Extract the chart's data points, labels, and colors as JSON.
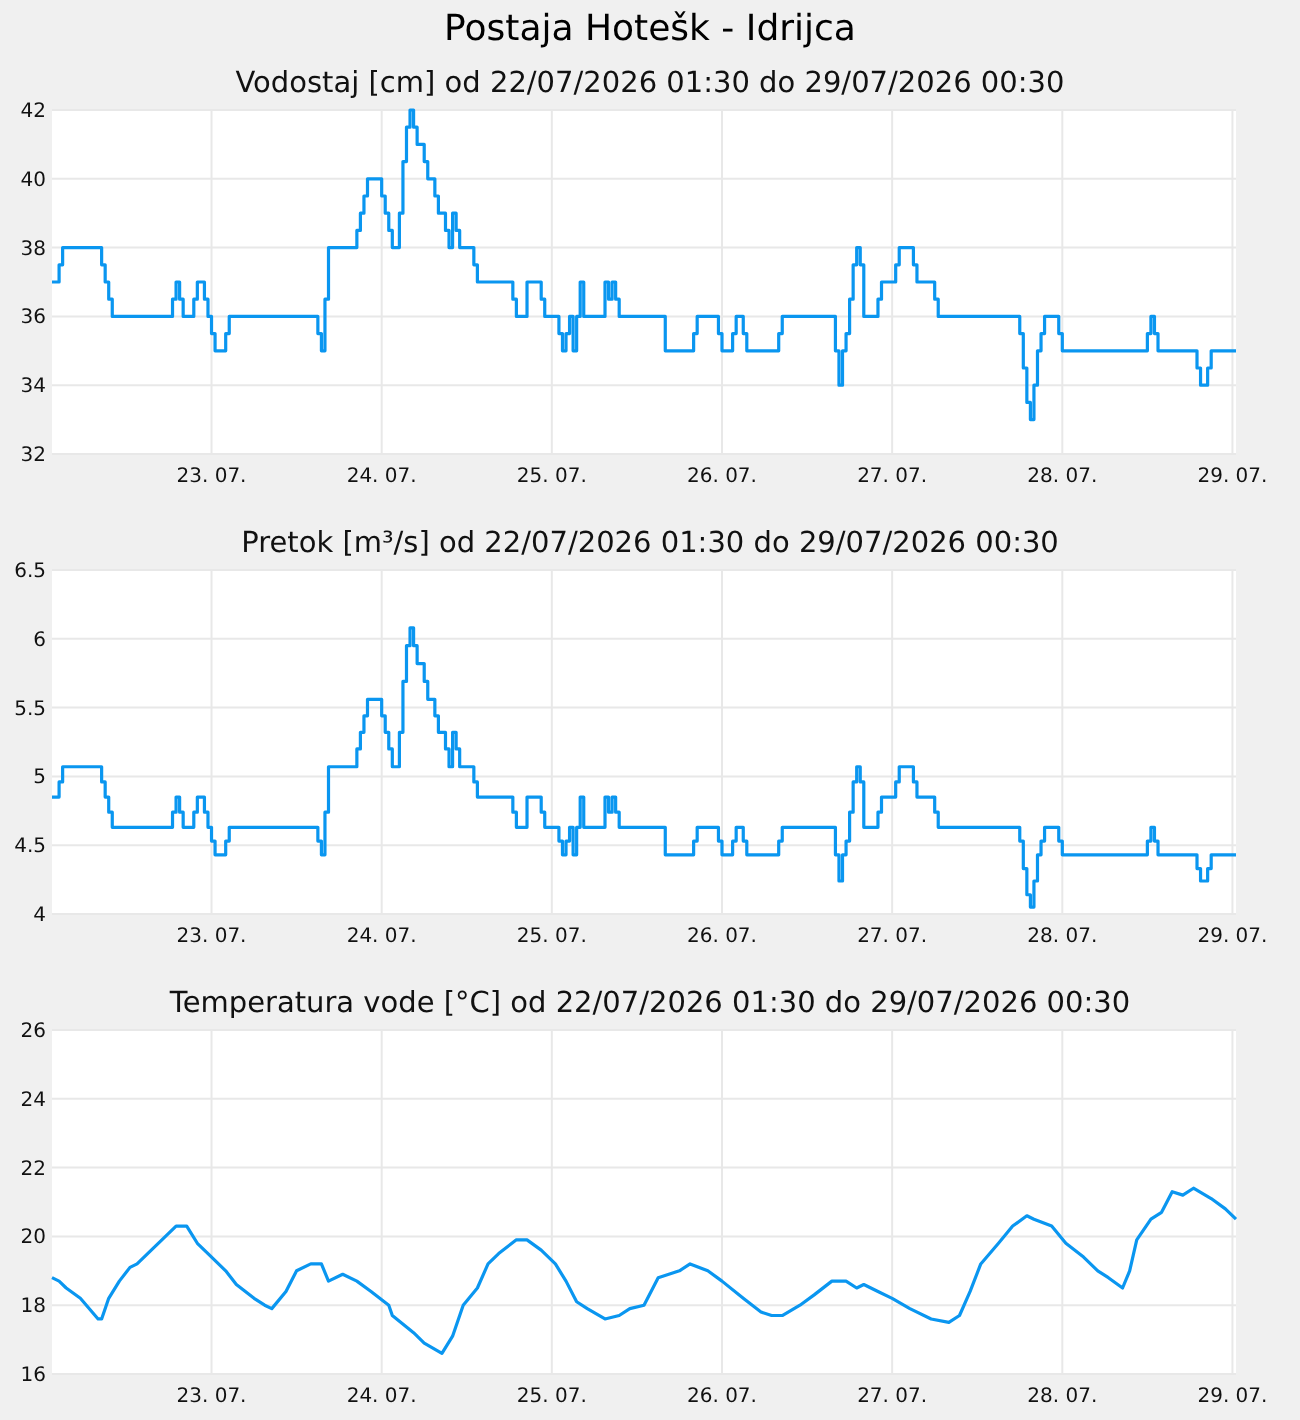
{
  "chart_data": [
    {
      "type": "step",
      "title": "Postaja Hotešk - Idrijca",
      "subtitle": "Vodostaj [cm] od 22/07/2026 01:30 do 29/07/2026 00:30",
      "x": [
        "2026-07-22T01:30",
        "2026-07-22T02:30",
        "2026-07-22T03:00",
        "2026-07-22T08:30",
        "2026-07-22T09:00",
        "2026-07-22T09:30",
        "2026-07-22T10:00",
        "2026-07-22T18:30",
        "2026-07-22T19:00",
        "2026-07-22T19:30",
        "2026-07-22T20:00",
        "2026-07-22T21:30",
        "2026-07-22T22:00",
        "2026-07-22T23:00",
        "2026-07-22T23:30",
        "2026-07-23T00:00",
        "2026-07-23T00:30",
        "2026-07-23T02:00",
        "2026-07-23T02:30",
        "2026-07-23T15:00",
        "2026-07-23T15:30",
        "2026-07-23T16:00",
        "2026-07-23T16:30",
        "2026-07-23T20:30",
        "2026-07-23T21:00",
        "2026-07-23T21:30",
        "2026-07-23T22:00",
        "2026-07-24T00:00",
        "2026-07-24T00:30",
        "2026-07-24T01:00",
        "2026-07-24T01:30",
        "2026-07-24T02:30",
        "2026-07-24T03:00",
        "2026-07-24T03:30",
        "2026-07-24T04:00",
        "2026-07-24T04:30",
        "2026-07-24T05:00",
        "2026-07-24T06:00",
        "2026-07-24T06:30",
        "2026-07-24T07:30",
        "2026-07-24T08:00",
        "2026-07-24T09:00",
        "2026-07-24T09:30",
        "2026-07-24T10:00",
        "2026-07-24T10:30",
        "2026-07-24T11:00",
        "2026-07-24T13:00",
        "2026-07-24T13:30",
        "2026-07-24T18:30",
        "2026-07-24T19:00",
        "2026-07-24T20:30",
        "2026-07-24T22:30",
        "2026-07-24T23:00",
        "2026-07-25T01:00",
        "2026-07-25T01:30",
        "2026-07-25T02:00",
        "2026-07-25T02:30",
        "2026-07-25T03:00",
        "2026-07-25T03:30",
        "2026-07-25T04:00",
        "2026-07-25T04:30",
        "2026-07-25T07:30",
        "2026-07-25T08:00",
        "2026-07-25T08:30",
        "2026-07-25T09:00",
        "2026-07-25T09:30",
        "2026-07-25T16:00",
        "2026-07-25T20:00",
        "2026-07-25T20:30",
        "2026-07-25T23:30",
        "2026-07-26T00:00",
        "2026-07-26T01:30",
        "2026-07-26T02:00",
        "2026-07-26T03:00",
        "2026-07-26T03:30",
        "2026-07-26T08:00",
        "2026-07-26T08:30",
        "2026-07-26T16:00",
        "2026-07-26T16:30",
        "2026-07-26T17:00",
        "2026-07-26T17:30",
        "2026-07-26T18:00",
        "2026-07-26T18:30",
        "2026-07-26T19:00",
        "2026-07-26T19:30",
        "2026-07-26T20:00",
        "2026-07-26T22:00",
        "2026-07-26T22:30",
        "2026-07-27T00:30",
        "2026-07-27T01:00",
        "2026-07-27T03:00",
        "2026-07-27T03:30",
        "2026-07-27T06:00",
        "2026-07-27T06:30",
        "2026-07-27T18:00",
        "2026-07-27T18:30",
        "2026-07-27T19:00",
        "2026-07-27T19:30",
        "2026-07-27T20:00",
        "2026-07-27T20:30",
        "2026-07-27T21:00",
        "2026-07-27T21:30",
        "2026-07-27T23:30",
        "2026-07-28T00:00",
        "2026-07-28T12:00",
        "2026-07-28T12:30",
        "2026-07-28T13:00",
        "2026-07-28T13:30",
        "2026-07-28T19:00",
        "2026-07-28T19:30",
        "2026-07-28T20:30",
        "2026-07-28T21:00",
        "2026-07-29T00:30"
      ],
      "series": [
        {
          "color": "#0a96f0",
          "values": [
            37,
            37.5,
            38,
            37.5,
            37,
            36.5,
            36,
            36.5,
            37,
            36.5,
            36,
            36.5,
            37,
            36.5,
            36,
            35.5,
            35,
            35.5,
            36,
            35.5,
            35,
            36.5,
            38,
            38.5,
            39,
            39.5,
            40,
            39.5,
            39,
            38.5,
            38,
            39,
            40.5,
            41.5,
            42,
            41.5,
            41,
            40.5,
            40,
            39.5,
            39,
            38.5,
            38,
            39,
            38.5,
            38,
            37.5,
            37,
            36.5,
            36,
            37,
            36.5,
            36,
            35.5,
            35,
            35.5,
            36,
            35,
            36,
            37,
            36,
            37,
            36.5,
            37,
            36.5,
            36,
            35,
            35.5,
            36,
            35.5,
            35,
            35.5,
            36,
            35.5,
            35,
            35.5,
            36,
            35,
            34,
            35,
            35.5,
            36.5,
            37.5,
            38,
            37.5,
            36,
            36.5,
            37,
            37.5,
            38,
            37.5,
            37,
            36.5,
            36,
            35.5,
            34.5,
            33.5,
            33,
            34,
            35,
            35.5,
            36,
            35.5,
            35,
            35.5,
            36,
            35.5,
            35,
            34.5,
            34,
            34.5,
            35,
            35
          ]
        }
      ],
      "xlim": [
        "2026-07-22T01:30",
        "2026-07-29T00:30"
      ],
      "xticks": [
        {
          "value": "2026-07-23",
          "label": "23. 07."
        },
        {
          "value": "2026-07-24",
          "label": "24. 07."
        },
        {
          "value": "2026-07-25",
          "label": "25. 07."
        },
        {
          "value": "2026-07-26",
          "label": "26. 07."
        },
        {
          "value": "2026-07-27",
          "label": "27. 07."
        },
        {
          "value": "2026-07-28",
          "label": "28. 07."
        },
        {
          "value": "2026-07-29",
          "label": "29. 07."
        }
      ],
      "ylim": [
        32,
        42
      ],
      "yticks": [
        32,
        34,
        36,
        38,
        40,
        42
      ],
      "grid": true,
      "marker": "none",
      "line_style": "solid"
    },
    {
      "type": "step",
      "title": "Pretok [m³/s] od 22/07/2026 01:30 do 29/07/2026 00:30",
      "x": [
        "2026-07-22T01:30",
        "2026-07-22T02:30",
        "2026-07-22T03:00",
        "2026-07-22T08:30",
        "2026-07-22T09:00",
        "2026-07-22T09:30",
        "2026-07-22T10:00",
        "2026-07-22T18:30",
        "2026-07-22T19:00",
        "2026-07-22T19:30",
        "2026-07-22T20:00",
        "2026-07-22T21:30",
        "2026-07-22T22:00",
        "2026-07-22T23:00",
        "2026-07-22T23:30",
        "2026-07-23T00:00",
        "2026-07-23T00:30",
        "2026-07-23T02:00",
        "2026-07-23T02:30",
        "2026-07-23T15:00",
        "2026-07-23T15:30",
        "2026-07-23T16:00",
        "2026-07-23T16:30",
        "2026-07-23T20:30",
        "2026-07-23T21:00",
        "2026-07-23T21:30",
        "2026-07-23T22:00",
        "2026-07-24T00:00",
        "2026-07-24T00:30",
        "2026-07-24T01:00",
        "2026-07-24T01:30",
        "2026-07-24T02:30",
        "2026-07-24T03:00",
        "2026-07-24T03:30",
        "2026-07-24T04:00",
        "2026-07-24T04:30",
        "2026-07-24T05:00",
        "2026-07-24T06:00",
        "2026-07-24T06:30",
        "2026-07-24T07:30",
        "2026-07-24T08:00",
        "2026-07-24T09:00",
        "2026-07-24T09:30",
        "2026-07-24T10:00",
        "2026-07-24T10:30",
        "2026-07-24T11:00",
        "2026-07-24T13:00",
        "2026-07-24T13:30",
        "2026-07-24T18:30",
        "2026-07-24T19:00",
        "2026-07-24T20:30",
        "2026-07-24T22:30",
        "2026-07-24T23:00",
        "2026-07-25T01:00",
        "2026-07-25T01:30",
        "2026-07-25T02:00",
        "2026-07-25T02:30",
        "2026-07-25T03:00",
        "2026-07-25T03:30",
        "2026-07-25T04:00",
        "2026-07-25T04:30",
        "2026-07-25T07:30",
        "2026-07-25T08:00",
        "2026-07-25T08:30",
        "2026-07-25T09:00",
        "2026-07-25T09:30",
        "2026-07-25T16:00",
        "2026-07-25T20:00",
        "2026-07-25T20:30",
        "2026-07-25T23:30",
        "2026-07-26T00:00",
        "2026-07-26T01:30",
        "2026-07-26T02:00",
        "2026-07-26T03:00",
        "2026-07-26T03:30",
        "2026-07-26T08:00",
        "2026-07-26T08:30",
        "2026-07-26T16:00",
        "2026-07-26T16:30",
        "2026-07-26T17:00",
        "2026-07-26T17:30",
        "2026-07-26T18:00",
        "2026-07-26T18:30",
        "2026-07-26T19:00",
        "2026-07-26T19:30",
        "2026-07-26T20:00",
        "2026-07-26T22:00",
        "2026-07-26T22:30",
        "2026-07-27T00:30",
        "2026-07-27T01:00",
        "2026-07-27T03:00",
        "2026-07-27T03:30",
        "2026-07-27T06:00",
        "2026-07-27T06:30",
        "2026-07-27T18:00",
        "2026-07-27T18:30",
        "2026-07-27T19:00",
        "2026-07-27T19:30",
        "2026-07-27T20:00",
        "2026-07-27T20:30",
        "2026-07-27T21:00",
        "2026-07-27T21:30",
        "2026-07-27T23:30",
        "2026-07-28T00:00",
        "2026-07-28T12:00",
        "2026-07-28T12:30",
        "2026-07-28T13:00",
        "2026-07-28T13:30",
        "2026-07-28T19:00",
        "2026-07-28T19:30",
        "2026-07-28T20:30",
        "2026-07-28T21:00",
        "2026-07-29T00:30"
      ],
      "series": [
        {
          "color": "#0a96f0",
          "values": [
            4.85,
            4.96,
            5.07,
            4.96,
            4.85,
            4.74,
            4.63,
            4.74,
            4.85,
            4.74,
            4.63,
            4.74,
            4.85,
            4.74,
            4.63,
            4.53,
            4.43,
            4.53,
            4.63,
            4.53,
            4.43,
            4.74,
            5.07,
            5.2,
            5.32,
            5.44,
            5.56,
            5.44,
            5.32,
            5.2,
            5.07,
            5.32,
            5.69,
            5.95,
            6.08,
            5.95,
            5.82,
            5.69,
            5.56,
            5.44,
            5.32,
            5.2,
            5.07,
            5.32,
            5.2,
            5.07,
            4.96,
            4.85,
            4.74,
            4.63,
            4.85,
            4.74,
            4.63,
            4.53,
            4.43,
            4.53,
            4.63,
            4.43,
            4.63,
            4.85,
            4.63,
            4.85,
            4.74,
            4.85,
            4.74,
            4.63,
            4.43,
            4.53,
            4.63,
            4.53,
            4.43,
            4.53,
            4.63,
            4.53,
            4.43,
            4.53,
            4.63,
            4.43,
            4.24,
            4.43,
            4.53,
            4.74,
            4.96,
            5.07,
            4.96,
            4.63,
            4.74,
            4.85,
            4.96,
            5.07,
            4.96,
            4.85,
            4.74,
            4.63,
            4.53,
            4.33,
            4.14,
            4.05,
            4.24,
            4.43,
            4.53,
            4.63,
            4.53,
            4.43,
            4.53,
            4.63,
            4.53,
            4.43,
            4.33,
            4.24,
            4.33,
            4.43,
            4.43
          ]
        }
      ],
      "xlim": [
        "2026-07-22T01:30",
        "2026-07-29T00:30"
      ],
      "xticks": [
        {
          "value": "2026-07-23",
          "label": "23. 07."
        },
        {
          "value": "2026-07-24",
          "label": "24. 07."
        },
        {
          "value": "2026-07-25",
          "label": "25. 07."
        },
        {
          "value": "2026-07-26",
          "label": "26. 07."
        },
        {
          "value": "2026-07-27",
          "label": "27. 07."
        },
        {
          "value": "2026-07-28",
          "label": "28. 07."
        },
        {
          "value": "2026-07-29",
          "label": "29. 07."
        }
      ],
      "ylim": [
        4,
        6.5
      ],
      "yticks": [
        4,
        4.5,
        5,
        5.5,
        6,
        6.5
      ],
      "grid": true,
      "marker": "none",
      "line_style": "solid"
    },
    {
      "type": "line",
      "title": "Temperatura vode [°C] od 22/07/2026 01:30 do 29/07/2026 00:30",
      "x": [
        "2026-07-22T01:30",
        "2026-07-22T02:30",
        "2026-07-22T03:30",
        "2026-07-22T05:30",
        "2026-07-22T08:00",
        "2026-07-22T08:30",
        "2026-07-22T09:30",
        "2026-07-22T11:00",
        "2026-07-22T12:30",
        "2026-07-22T13:30",
        "2026-07-22T15:30",
        "2026-07-22T17:00",
        "2026-07-22T19:00",
        "2026-07-22T20:30",
        "2026-07-22T22:00",
        "2026-07-22T23:30",
        "2026-07-23T02:00",
        "2026-07-23T03:30",
        "2026-07-23T06:00",
        "2026-07-23T07:30",
        "2026-07-23T08:30",
        "2026-07-23T10:30",
        "2026-07-23T12:00",
        "2026-07-23T14:00",
        "2026-07-23T15:30",
        "2026-07-23T16:30",
        "2026-07-23T18:30",
        "2026-07-23T20:30",
        "2026-07-23T22:30",
        "2026-07-24T01:00",
        "2026-07-24T01:30",
        "2026-07-24T04:30",
        "2026-07-24T06:00",
        "2026-07-24T08:30",
        "2026-07-24T10:00",
        "2026-07-24T11:30",
        "2026-07-24T13:30",
        "2026-07-24T15:00",
        "2026-07-24T16:30",
        "2026-07-24T19:00",
        "2026-07-24T20:30",
        "2026-07-24T22:30",
        "2026-07-25T00:30",
        "2026-07-25T02:00",
        "2026-07-25T03:30",
        "2026-07-25T05:00",
        "2026-07-25T07:30",
        "2026-07-25T09:30",
        "2026-07-25T11:00",
        "2026-07-25T13:00",
        "2026-07-25T15:00",
        "2026-07-25T18:00",
        "2026-07-25T19:30",
        "2026-07-25T22:00",
        "2026-07-26T00:00",
        "2026-07-26T03:00",
        "2026-07-26T05:30",
        "2026-07-26T07:00",
        "2026-07-26T08:30",
        "2026-07-26T11:00",
        "2026-07-26T13:00",
        "2026-07-26T15:30",
        "2026-07-26T17:30",
        "2026-07-26T19:00",
        "2026-07-26T20:00",
        "2026-07-26T22:00",
        "2026-07-27T00:00",
        "2026-07-27T02:30",
        "2026-07-27T05:30",
        "2026-07-27T08:00",
        "2026-07-27T09:30",
        "2026-07-27T11:00",
        "2026-07-27T12:30",
        "2026-07-27T15:00",
        "2026-07-27T17:00",
        "2026-07-27T19:00",
        "2026-07-27T20:00",
        "2026-07-27T22:30",
        "2026-07-28T00:30",
        "2026-07-28T03:00",
        "2026-07-28T05:00",
        "2026-07-28T06:30",
        "2026-07-28T08:30",
        "2026-07-28T09:30",
        "2026-07-28T10:30",
        "2026-07-28T12:30",
        "2026-07-28T14:00",
        "2026-07-28T15:30",
        "2026-07-28T17:00",
        "2026-07-28T18:30",
        "2026-07-28T21:00",
        "2026-07-28T23:00",
        "2026-07-29T00:30"
      ],
      "series": [
        {
          "color": "#0a96f0",
          "values": [
            18.8,
            18.7,
            18.5,
            18.2,
            17.6,
            17.6,
            18.2,
            18.7,
            19.1,
            19.2,
            19.6,
            19.9,
            20.3,
            20.3,
            19.8,
            19.5,
            19.0,
            18.6,
            18.2,
            18.0,
            17.9,
            18.4,
            19.0,
            19.2,
            19.2,
            18.7,
            18.9,
            18.7,
            18.4,
            18.0,
            17.7,
            17.2,
            16.9,
            16.6,
            17.1,
            18.0,
            18.5,
            19.2,
            19.5,
            19.9,
            19.9,
            19.6,
            19.2,
            18.7,
            18.1,
            17.9,
            17.6,
            17.7,
            17.9,
            18.0,
            18.8,
            19.0,
            19.2,
            19.0,
            18.7,
            18.2,
            17.8,
            17.7,
            17.7,
            18.0,
            18.3,
            18.7,
            18.7,
            18.5,
            18.6,
            18.4,
            18.2,
            17.9,
            17.6,
            17.5,
            17.7,
            18.4,
            19.2,
            19.8,
            20.3,
            20.6,
            20.5,
            20.3,
            19.8,
            19.4,
            19.0,
            18.8,
            18.5,
            19.0,
            19.9,
            20.5,
            20.7,
            21.3,
            21.2,
            21.4,
            21.1,
            20.8,
            20.5
          ]
        }
      ],
      "xlim": [
        "2026-07-22T01:30",
        "2026-07-29T00:30"
      ],
      "xticks": [
        {
          "value": "2026-07-23",
          "label": "23. 07."
        },
        {
          "value": "2026-07-24",
          "label": "24. 07."
        },
        {
          "value": "2026-07-25",
          "label": "25. 07."
        },
        {
          "value": "2026-07-26",
          "label": "26. 07."
        },
        {
          "value": "2026-07-27",
          "label": "27. 07."
        },
        {
          "value": "2026-07-28",
          "label": "28. 07."
        },
        {
          "value": "2026-07-29",
          "label": "29. 07."
        }
      ],
      "ylim": [
        16,
        26
      ],
      "yticks": [
        16,
        18,
        20,
        22,
        24,
        26
      ],
      "grid": true,
      "marker": "none",
      "line_style": "solid"
    }
  ]
}
